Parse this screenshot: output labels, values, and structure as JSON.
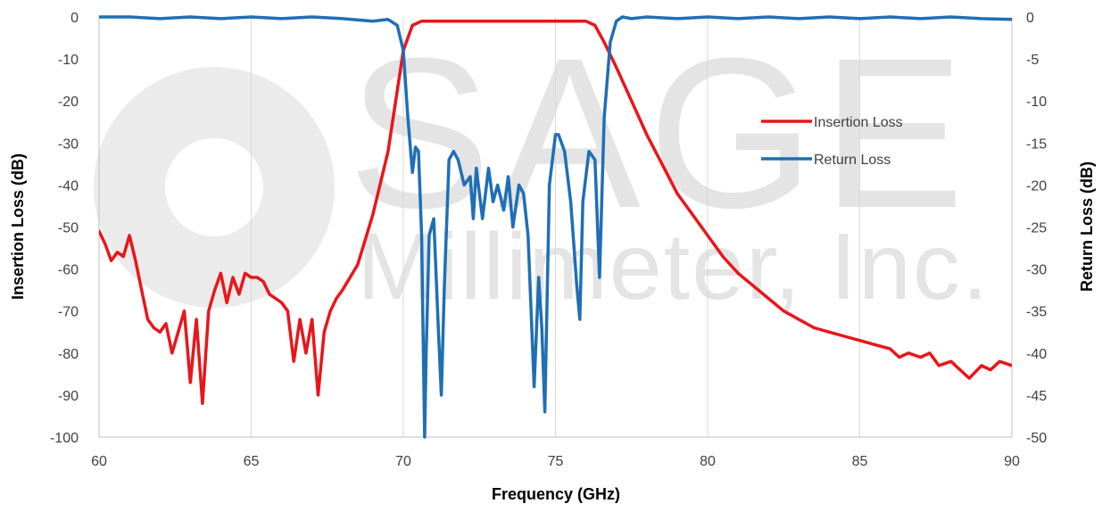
{
  "chart_data": {
    "type": "line",
    "xlabel": "Frequency (GHz)",
    "ylabel_left": "Insertion Loss (dB)",
    "ylabel_right": "Return Loss (dB)",
    "xlim": [
      60,
      90
    ],
    "ylim_left": [
      -100,
      0
    ],
    "ylim_right": [
      -50,
      0
    ],
    "x_ticks": [
      60,
      65,
      70,
      75,
      80,
      85,
      90
    ],
    "y_ticks_left": [
      0,
      -10,
      -20,
      -30,
      -40,
      -50,
      -60,
      -70,
      -80,
      -90,
      -100
    ],
    "y_ticks_right": [
      0,
      -5,
      -10,
      -15,
      -20,
      -25,
      -30,
      -35,
      -40,
      -45,
      -50
    ],
    "grid": "vertical",
    "legend_position": "right-center",
    "watermark": {
      "line1": "SAGE",
      "line2": "Millimeter, Inc."
    },
    "series": [
      {
        "name": "Insertion Loss",
        "axis": "left",
        "color": "#e8161b",
        "x": [
          60.0,
          60.2,
          60.4,
          60.6,
          60.8,
          61.0,
          61.2,
          61.4,
          61.6,
          61.8,
          62.0,
          62.2,
          62.4,
          62.6,
          62.8,
          63.0,
          63.2,
          63.4,
          63.6,
          63.8,
          64.0,
          64.2,
          64.4,
          64.6,
          64.8,
          65.0,
          65.2,
          65.4,
          65.6,
          65.8,
          66.0,
          66.2,
          66.4,
          66.6,
          66.8,
          67.0,
          67.2,
          67.4,
          67.6,
          67.8,
          68.0,
          68.5,
          69.0,
          69.5,
          70.0,
          70.3,
          70.6,
          71.0,
          72.0,
          73.0,
          74.0,
          75.0,
          76.0,
          76.3,
          76.6,
          77.0,
          77.5,
          78.0,
          78.5,
          79.0,
          79.5,
          80.0,
          80.5,
          81.0,
          81.5,
          82.0,
          82.5,
          83.0,
          83.5,
          84.0,
          84.5,
          85.0,
          85.5,
          86.0,
          86.3,
          86.6,
          87.0,
          87.3,
          87.6,
          88.0,
          88.3,
          88.6,
          89.0,
          89.3,
          89.6,
          90.0
        ],
        "values": [
          -51,
          -54,
          -58,
          -56,
          -57,
          -52,
          -58,
          -65,
          -72,
          -74,
          -75,
          -73,
          -80,
          -75,
          -70,
          -87,
          -72,
          -92,
          -70,
          -65,
          -61,
          -68,
          -62,
          -66,
          -61,
          -62,
          -62,
          -63,
          -66,
          -67,
          -68,
          -70,
          -82,
          -72,
          -80,
          -72,
          -90,
          -75,
          -70,
          -67,
          -65,
          -59,
          -47,
          -32,
          -8,
          -2,
          -1,
          -1,
          -1,
          -1,
          -1,
          -1,
          -1,
          -2,
          -6,
          -12,
          -20,
          -28,
          -35,
          -42,
          -47,
          -52,
          -57,
          -61,
          -64,
          -67,
          -70,
          -72,
          -74,
          -75,
          -76,
          -77,
          -78,
          -79,
          -81,
          -80,
          -81,
          -80,
          -83,
          -82,
          -84,
          -86,
          -83,
          -84,
          -82,
          -83
        ]
      },
      {
        "name": "Return Loss",
        "axis": "right",
        "color": "#1f6fb5",
        "x": [
          60.0,
          61.0,
          62.0,
          63.0,
          64.0,
          65.0,
          66.0,
          67.0,
          68.0,
          69.0,
          69.5,
          69.8,
          70.0,
          70.15,
          70.3,
          70.4,
          70.5,
          70.6,
          70.7,
          70.75,
          70.85,
          71.0,
          71.15,
          71.25,
          71.35,
          71.5,
          71.65,
          71.8,
          72.0,
          72.2,
          72.3,
          72.4,
          72.6,
          72.8,
          72.95,
          73.1,
          73.3,
          73.45,
          73.6,
          73.8,
          73.95,
          74.1,
          74.3,
          74.45,
          74.55,
          74.65,
          74.8,
          75.0,
          75.1,
          75.3,
          75.5,
          75.7,
          75.8,
          75.9,
          76.1,
          76.3,
          76.45,
          76.6,
          76.8,
          77.0,
          77.2,
          77.5,
          78.0,
          79.0,
          80.0,
          81.0,
          82.0,
          83.0,
          84.0,
          85.0,
          86.0,
          87.0,
          88.0,
          89.0,
          90.0
        ],
        "values": [
          0,
          0,
          -0.2,
          0,
          -0.2,
          0,
          -0.2,
          0,
          -0.2,
          -0.5,
          -0.3,
          -1,
          -4,
          -12,
          -18.5,
          -15.5,
          -16,
          -26,
          -50,
          -40,
          -26,
          -24,
          -37,
          -45,
          -32,
          -17,
          -16,
          -17,
          -20,
          -19,
          -24,
          -18,
          -24,
          -18,
          -22,
          -20,
          -23,
          -19,
          -25,
          -20,
          -21,
          -26,
          -44,
          -31,
          -37,
          -47,
          -20,
          -14,
          -14,
          -16,
          -22,
          -32,
          -36,
          -22,
          -16,
          -17,
          -31,
          -12,
          -3,
          -0.5,
          0,
          -0.2,
          0,
          -0.2,
          0,
          -0.2,
          0,
          -0.2,
          0,
          -0.2,
          0,
          -0.2,
          0,
          -0.2,
          -0.3
        ]
      }
    ]
  }
}
